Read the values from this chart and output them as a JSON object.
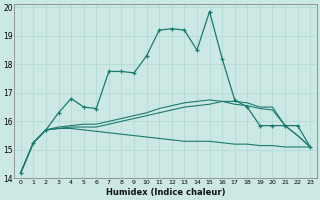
{
  "xlabel": "Humidex (Indice chaleur)",
  "ylabel": "",
  "background_color": "#cce8e4",
  "grid_color": "#b0d8d0",
  "line_color": "#1a7a6e",
  "xlim": [
    -0.5,
    23.5
  ],
  "ylim": [
    14,
    20.1
  ],
  "xticks": [
    0,
    1,
    2,
    3,
    4,
    5,
    6,
    7,
    8,
    9,
    10,
    11,
    12,
    13,
    14,
    15,
    16,
    17,
    18,
    19,
    20,
    21,
    22,
    23
  ],
  "yticks": [
    14,
    15,
    16,
    17,
    18,
    19,
    20
  ],
  "line1_x": [
    0,
    1,
    2,
    3,
    4,
    5,
    6,
    7,
    8,
    9,
    10,
    11,
    12,
    13,
    14,
    15,
    16,
    17,
    18,
    19,
    20,
    21,
    22,
    23
  ],
  "line1_y": [
    14.2,
    15.25,
    15.7,
    16.3,
    16.8,
    16.5,
    16.45,
    17.75,
    17.75,
    17.7,
    18.3,
    19.2,
    19.25,
    19.2,
    18.5,
    19.85,
    18.2,
    16.75,
    16.5,
    15.85,
    15.85,
    15.85,
    15.85,
    15.1
  ],
  "line2_x": [
    0,
    1,
    2,
    3,
    4,
    5,
    6,
    7,
    8,
    9,
    10,
    11,
    12,
    13,
    14,
    15,
    16,
    17,
    18,
    19,
    20,
    21,
    22,
    23
  ],
  "line2_y": [
    14.2,
    15.25,
    15.7,
    15.75,
    15.8,
    15.8,
    15.8,
    15.9,
    16.0,
    16.1,
    16.2,
    16.3,
    16.4,
    16.5,
    16.55,
    16.6,
    16.7,
    16.7,
    16.65,
    16.5,
    16.5,
    15.85,
    15.5,
    15.1
  ],
  "line3_x": [
    0,
    1,
    2,
    3,
    4,
    5,
    6,
    7,
    8,
    9,
    10,
    11,
    12,
    13,
    14,
    15,
    16,
    17,
    18,
    19,
    20,
    21,
    22,
    23
  ],
  "line3_y": [
    14.2,
    15.25,
    15.7,
    15.75,
    15.75,
    15.7,
    15.65,
    15.6,
    15.55,
    15.5,
    15.45,
    15.4,
    15.35,
    15.3,
    15.3,
    15.3,
    15.25,
    15.2,
    15.2,
    15.15,
    15.15,
    15.1,
    15.1,
    15.1
  ],
  "line4_x": [
    0,
    1,
    2,
    3,
    4,
    5,
    6,
    7,
    8,
    9,
    10,
    11,
    12,
    13,
    14,
    15,
    16,
    17,
    18,
    19,
    20,
    21,
    22,
    23
  ],
  "line4_y": [
    14.2,
    15.25,
    15.7,
    15.8,
    15.85,
    15.9,
    15.9,
    16.0,
    16.1,
    16.2,
    16.3,
    16.45,
    16.55,
    16.65,
    16.7,
    16.75,
    16.7,
    16.6,
    16.55,
    16.45,
    16.4,
    15.85,
    15.5,
    15.1
  ]
}
